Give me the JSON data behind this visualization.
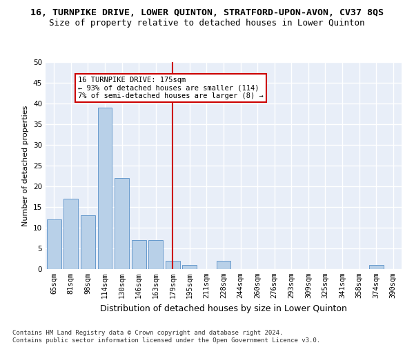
{
  "title": "16, TURNPIKE DRIVE, LOWER QUINTON, STRATFORD-UPON-AVON, CV37 8QS",
  "subtitle": "Size of property relative to detached houses in Lower Quinton",
  "xlabel": "Distribution of detached houses by size in Lower Quinton",
  "ylabel": "Number of detached properties",
  "categories": [
    "65sqm",
    "81sqm",
    "98sqm",
    "114sqm",
    "130sqm",
    "146sqm",
    "163sqm",
    "179sqm",
    "195sqm",
    "211sqm",
    "228sqm",
    "244sqm",
    "260sqm",
    "276sqm",
    "293sqm",
    "309sqm",
    "325sqm",
    "341sqm",
    "358sqm",
    "374sqm",
    "390sqm"
  ],
  "values": [
    12,
    17,
    13,
    39,
    22,
    7,
    7,
    2,
    1,
    0,
    2,
    0,
    0,
    0,
    0,
    0,
    0,
    0,
    0,
    1,
    0
  ],
  "bar_color": "#b8d0e8",
  "bar_edge_color": "#6699cc",
  "vline_x": 7,
  "vline_color": "#cc0000",
  "annotation_text": "16 TURNPIKE DRIVE: 175sqm\n← 93% of detached houses are smaller (114)\n7% of semi-detached houses are larger (8) →",
  "annotation_box_color": "#ffffff",
  "annotation_box_edge": "#cc0000",
  "ylim": [
    0,
    50
  ],
  "yticks": [
    0,
    5,
    10,
    15,
    20,
    25,
    30,
    35,
    40,
    45,
    50
  ],
  "background_color": "#e8eef8",
  "grid_color": "#ffffff",
  "footer": "Contains HM Land Registry data © Crown copyright and database right 2024.\nContains public sector information licensed under the Open Government Licence v3.0.",
  "title_fontsize": 9.5,
  "subtitle_fontsize": 9,
  "xlabel_fontsize": 9,
  "ylabel_fontsize": 8,
  "tick_fontsize": 7.5,
  "annotation_fontsize": 7.5,
  "footer_fontsize": 6.5
}
